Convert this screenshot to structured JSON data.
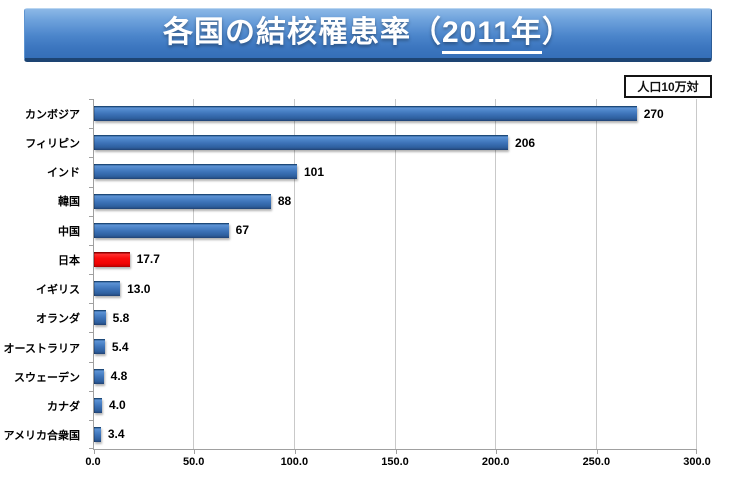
{
  "slide": {
    "title": {
      "prefix": "各国の結核罹患率（",
      "underlined": "2011年",
      "suffix": "）",
      "full": "各国の結核罹患率（2011年）"
    },
    "unit_label": "人口10万対"
  },
  "chart_data": {
    "type": "bar",
    "orientation": "horizontal",
    "title": "各国の結核罹患率（2011年）",
    "unit": "人口10万対",
    "categories": [
      "カンボジア",
      "フィリピン",
      "インド",
      "韓国",
      "中国",
      "日本",
      "イギリス",
      "オランダ",
      "オーストラリア",
      "スウェーデン",
      "カナダ",
      "アメリカ合衆国"
    ],
    "values": [
      270,
      206,
      101,
      88,
      67,
      17.7,
      13.0,
      5.8,
      5.4,
      4.8,
      4.0,
      3.4
    ],
    "value_labels": [
      "270",
      "206",
      "101",
      "88",
      "67",
      "17.7",
      "13.0",
      "5.8",
      "5.4",
      "4.8",
      "4.0",
      "3.4"
    ],
    "highlight_index": 5,
    "highlight_category": "日本",
    "colors": {
      "bar": "#3a6fb4",
      "highlight": "#f90b0b",
      "banner_top": "#8cb8e7",
      "banner_bottom": "#356fb8",
      "banner_edge": "#1d4473",
      "gridline": "#c9c9c9",
      "axis": "#a0a0a0",
      "text": "#000000"
    },
    "xlim": [
      0,
      300
    ],
    "x_ticks": [
      "0.0",
      "50.0",
      "100.0",
      "150.0",
      "200.0",
      "250.0",
      "300.0"
    ],
    "grid": true,
    "legend": false
  }
}
